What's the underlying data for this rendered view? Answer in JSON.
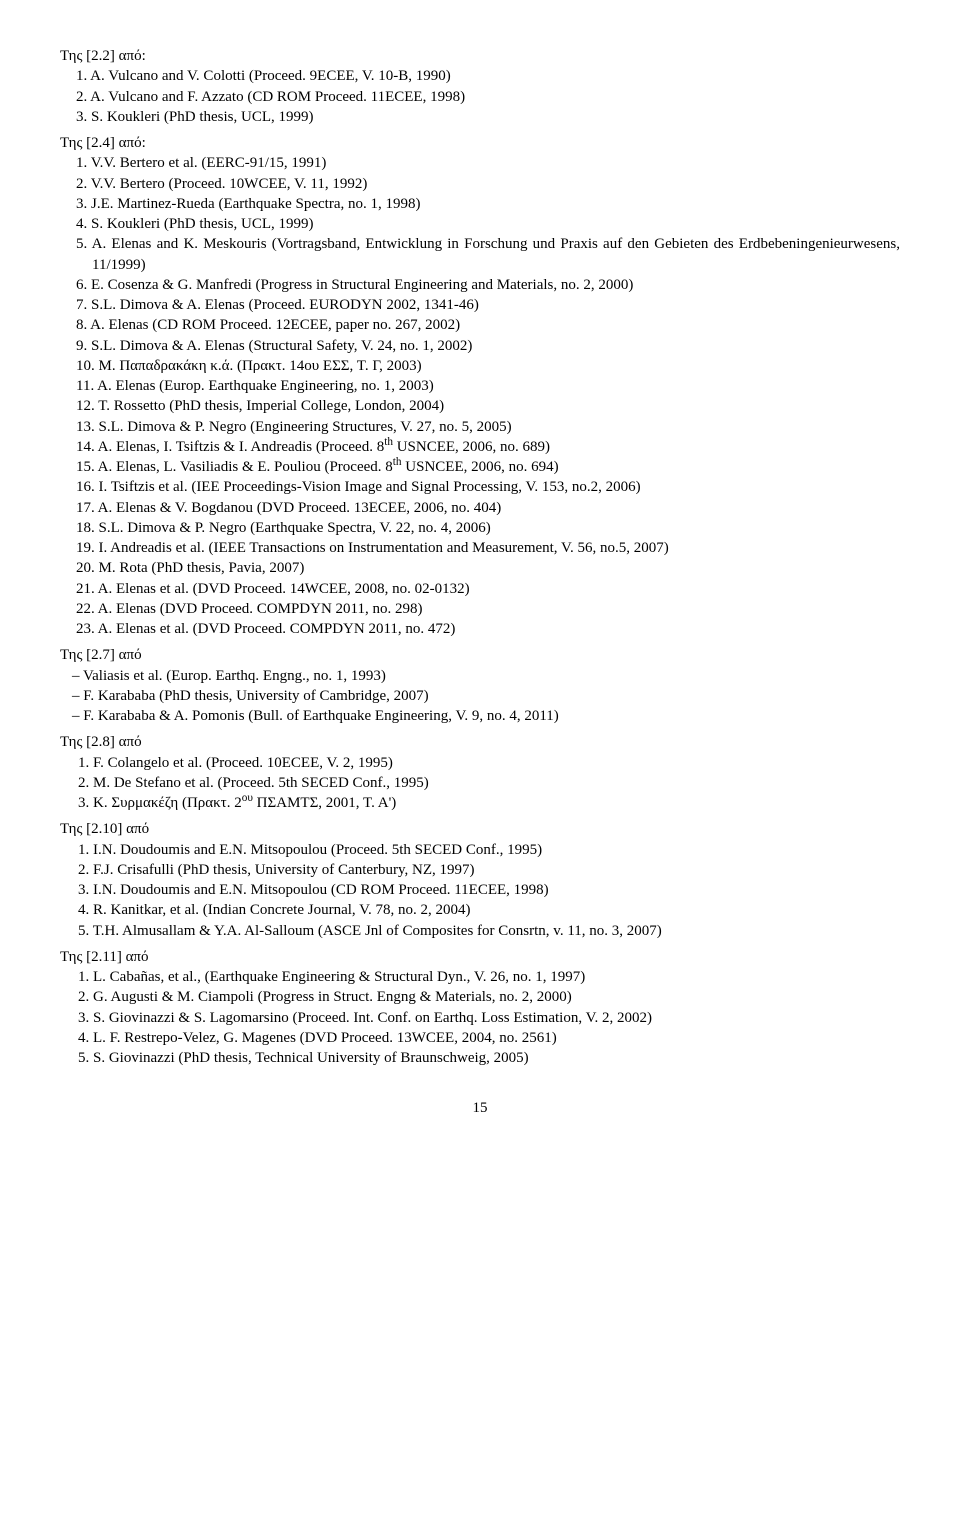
{
  "sections": {
    "s22": {
      "heading": "Της [2.2] από:",
      "items": [
        "1.  A. Vulcano and V. Colotti (Proceed. 9ECEE, V. 10-B, 1990)",
        "2.  A. Vulcano and F. Azzato (CD ROM Proceed. 11ECEE, 1998)",
        "3.  S. Koukleri (PhD thesis, UCL, 1999)"
      ]
    },
    "s24": {
      "heading": "Της [2.4] από:",
      "items": [
        "1.  V.V. Bertero et al. (EERC-91/15, 1991)",
        "2.  V.V. Bertero (Proceed. 10WCEE, V. 11, 1992)",
        "3.  J.E. Martinez-Rueda (Earthquake Spectra, no. 1, 1998)",
        "4.  S. Koukleri (PhD thesis, UCL, 1999)",
        "5.  A. Elenas and K. Meskouris (Vortragsband, Entwicklung in Forschung und Praxis auf den Gebieten des Erdbebeningenieurwesens, 11/1999)",
        "6.  E. Cosenza & G. Manfredi (Progress in Structural Engineering and Materials, no. 2, 2000)",
        "7.  S.L. Dimova & A. Elenas (Proceed. EURODYN 2002, 1341-46)",
        "8.  A. Elenas (CD ROM Proceed. 12ECEE, paper no. 267, 2002)",
        "9.  S.L. Dimova & A. Elenas (Structural Safety, V. 24, no. 1, 2002)",
        "10. Μ. Παπαδρακάκη κ.ά. (Πρακτ. 14ου ΕΣΣ, Τ. Γ, 2003)",
        "11. A. Elenas (Europ. Earthquake Engineering, no. 1, 2003)",
        "12. T. Rossetto (PhD thesis, Imperial College, London, 2004)",
        "13. S.L. Dimova & P. Negro (Engineering Structures, V. 27, no. 5, 2005)",
        "14. A. Elenas, I. Tsiftzis & I. Andreadis (Proceed. 8<sup>th</sup> USNCEE, 2006, no. 689)",
        "15. A. Elenas, L. Vasiliadis & E. Pouliou (Proceed. 8<sup>th</sup> USNCEE, 2006, no. 694)",
        "16. I. Tsiftzis et al. (IEE Proceedings-Vision Image and Signal Processing, V. 153, no.2, 2006)",
        "17. A. Elenas & V. Bogdanou (DVD Proceed. 13ECEE, 2006, no. 404)",
        "18. S.L. Dimova & P. Negro (Earthquake Spectra, V. 22, no. 4, 2006)",
        "19. I. Andreadis et al. (IEEE Transactions on Instrumentation and Measurement, V. 56, no.5, 2007)",
        "20. M. Rota (PhD thesis, Pavia, 2007)",
        "21. A. Elenas et al. (DVD Proceed. 14WCEE, 2008, no. 02-0132)",
        "22. A. Elenas (DVD Proceed. COMPDYN 2011, no. 298)",
        "23. A. Elenas et al. (DVD Proceed. COMPDYN 2011, no. 472)"
      ]
    },
    "s27": {
      "heading": "Της [2.7] από",
      "items": [
        "–  Valiasis et al. (Europ. Earthq. Engng., no. 1, 1993)",
        "–  F. Karababa (PhD thesis, University of Cambridge, 2007)",
        "–  F. Karababa & A. Pomonis (Bull. of Earthquake Engineering, V. 9, no. 4, 2011)"
      ]
    },
    "s28": {
      "heading": "Της [2.8] από",
      "items": [
        "1.   F. Colangelo et al. (Proceed. 10ECEE, V. 2, 1995)",
        "2.   M. De Stefano et al. (Proceed. 5th SECED Conf., 1995)",
        "3.   Κ. Συρμακέζη (Πρακτ. 2<sup>ου</sup> ΠΣΑΜΤΣ, 2001, Τ. Α')"
      ]
    },
    "s210": {
      "heading": "Της [2.10] από",
      "items": [
        "1.   I.N. Doudoumis and E.N. Mitsopoulou (Proceed. 5th SECED Conf., 1995)",
        "2.   F.J. Crisafulli (PhD thesis, University of Canterbury, NZ, 1997)",
        "3.   I.N. Doudoumis and E.N. Mitsopoulou (CD ROM Proceed. 11ECEE, 1998)",
        "4.   R. Kanitkar, et al. (Indian Concrete Journal, V. 78, no. 2, 2004)",
        "5.   T.H. Almusallam & Y.A. Al-Salloum (ASCE Jnl of Composites for Consrtn, v. 11, no. 3, 2007)"
      ]
    },
    "s211": {
      "heading": "Της [2.11] από",
      "items": [
        "1.   L. Cabañas, et al., (Earthquake Engineering & Structural Dyn., V. 26, no. 1, 1997)",
        "2.   G. Augusti & M. Ciampoli (Progress in Struct. Engng & Materials, no. 2, 2000)",
        "3.   S. Giovinazzi & S. Lagomarsino (Proceed. Int. Conf. on Earthq. Loss Estimation, V. 2, 2002)",
        "4.   L. F. Restrepo-Velez, G. Magenes (DVD Proceed. 13WCEE, 2004, no. 2561)",
        "5.   S. Giovinazzi (PhD thesis, Technical University of Braunschweig, 2005)"
      ]
    }
  },
  "pageNumber": "15"
}
